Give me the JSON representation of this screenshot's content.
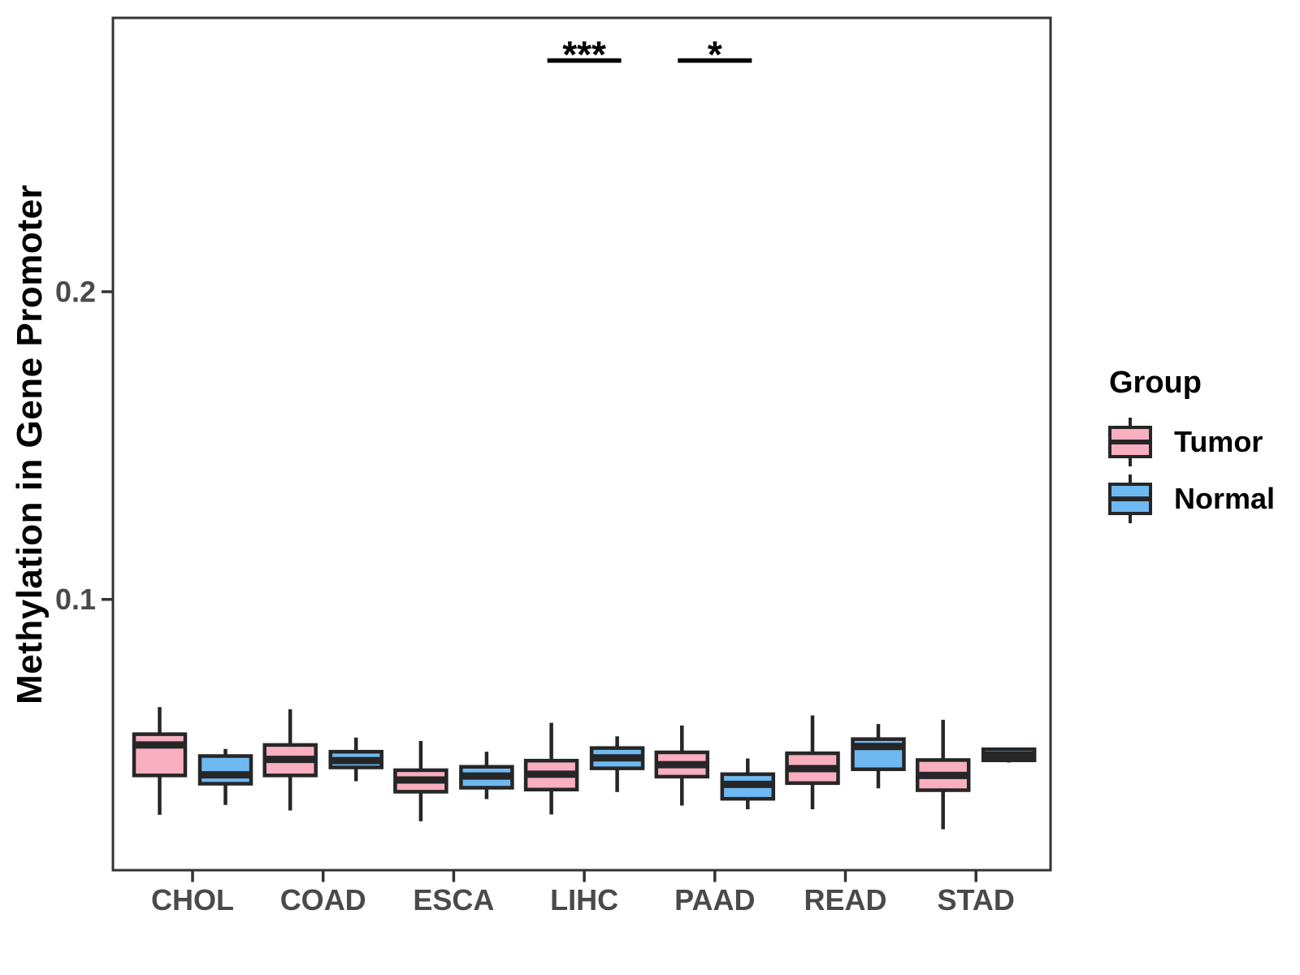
{
  "figure": {
    "y_axis_title": "Methylation in Gene Promoter"
  },
  "legend": {
    "title": "Group",
    "position": "right",
    "items": [
      {
        "label": "Tumor",
        "color": "#F9AFBF"
      },
      {
        "label": "Normal",
        "color": "#6FB9F2"
      }
    ]
  },
  "colors": {
    "box_outline": "#262626",
    "panel_border": "#333333",
    "axis_text": "#4a4a4a",
    "axis_title_text": "#000000",
    "annotation": "#000000",
    "background": "#ffffff"
  },
  "chart_data": {
    "type": "boxplot",
    "title": "",
    "xlabel": "",
    "ylabel": "Methylation in Gene Promoter",
    "categories": [
      "CHOL",
      "COAD",
      "ESCA",
      "LIHC",
      "PAAD",
      "READ",
      "STAD"
    ],
    "ylim": [
      0.012,
      0.289
    ],
    "yticks": [
      0.1,
      0.2
    ],
    "grid": false,
    "legend_position": "right",
    "series": [
      {
        "name": "Tumor",
        "color": "#F9AFBF",
        "boxes": [
          {
            "category": "CHOL",
            "whisker_low": 0.03,
            "q1": 0.0428,
            "median": 0.0527,
            "q3": 0.0562,
            "whisker_high": 0.065
          },
          {
            "category": "COAD",
            "whisker_low": 0.0314,
            "q1": 0.0428,
            "median": 0.048,
            "q3": 0.0527,
            "whisker_high": 0.0643
          },
          {
            "category": "ESCA",
            "whisker_low": 0.0279,
            "q1": 0.0375,
            "median": 0.0413,
            "q3": 0.0445,
            "whisker_high": 0.054
          },
          {
            "category": "LIHC",
            "whisker_low": 0.0301,
            "q1": 0.0382,
            "median": 0.0432,
            "q3": 0.0476,
            "whisker_high": 0.0599
          },
          {
            "category": "PAAD",
            "whisker_low": 0.033,
            "q1": 0.0424,
            "median": 0.0463,
            "q3": 0.0503,
            "whisker_high": 0.059
          },
          {
            "category": "READ",
            "whisker_low": 0.0318,
            "q1": 0.0403,
            "median": 0.045,
            "q3": 0.05,
            "whisker_high": 0.0623
          },
          {
            "category": "STAD",
            "whisker_low": 0.0253,
            "q1": 0.038,
            "median": 0.0428,
            "q3": 0.0478,
            "whisker_high": 0.0609
          }
        ]
      },
      {
        "name": "Normal",
        "color": "#6FB9F2",
        "boxes": [
          {
            "category": "CHOL",
            "whisker_low": 0.0332,
            "q1": 0.0401,
            "median": 0.043,
            "q3": 0.0491,
            "whisker_high": 0.0514
          },
          {
            "category": "COAD",
            "whisker_low": 0.0409,
            "q1": 0.0454,
            "median": 0.0476,
            "q3": 0.0505,
            "whisker_high": 0.0551
          },
          {
            "category": "ESCA",
            "whisker_low": 0.0351,
            "q1": 0.0388,
            "median": 0.0426,
            "q3": 0.0456,
            "whisker_high": 0.0505
          },
          {
            "category": "LIHC",
            "whisker_low": 0.0374,
            "q1": 0.0451,
            "median": 0.0485,
            "q3": 0.0517,
            "whisker_high": 0.0555
          },
          {
            "category": "PAAD",
            "whisker_low": 0.0318,
            "q1": 0.0352,
            "median": 0.0399,
            "q3": 0.0432,
            "whisker_high": 0.0483
          },
          {
            "category": "READ",
            "whisker_low": 0.0386,
            "q1": 0.0448,
            "median": 0.0522,
            "q3": 0.0546,
            "whisker_high": 0.0595
          },
          {
            "category": "STAD",
            "whisker_low": 0.047,
            "q1": 0.0477,
            "median": 0.0494,
            "q3": 0.0513,
            "whisker_high": 0.0517
          }
        ]
      }
    ],
    "annotations": [
      {
        "category": "LIHC",
        "label": "***",
        "type": "significance-bar"
      },
      {
        "category": "PAAD",
        "label": "*",
        "type": "significance-bar"
      }
    ]
  }
}
